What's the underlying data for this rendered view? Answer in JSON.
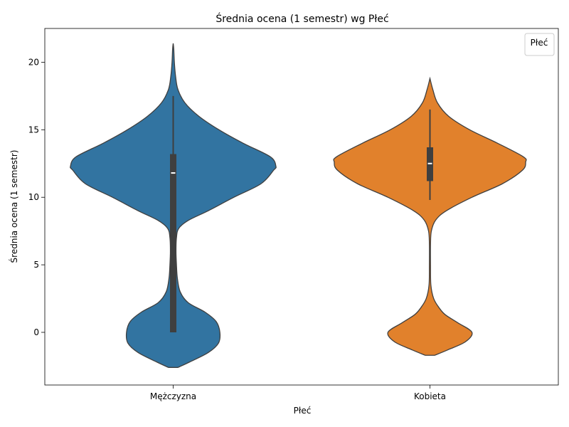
{
  "chart_data": {
    "type": "violin",
    "title": "Średnia ocena (1 semestr) wg Płeć",
    "xlabel": "Płeć",
    "ylabel": "Średnia ocena (1 semestr)",
    "categories": [
      "Mężczyzna",
      "Kobieta"
    ],
    "ylim": [
      -3.9,
      22.5
    ],
    "yticks": [
      0,
      5,
      10,
      15,
      20
    ],
    "ytick_labels": [
      "0",
      "5",
      "10",
      "15",
      "20"
    ],
    "legend": {
      "title": "Płeć",
      "placement": "top-right",
      "entries": []
    },
    "grid": false,
    "series": [
      {
        "category": "Mężczyzna",
        "color": "#3274a1",
        "range": [
          -2.6,
          21.4
        ],
        "quartiles": {
          "q1": 0.0,
          "median": 11.8,
          "q3": 13.2
        },
        "whiskers": [
          0.0,
          17.5
        ],
        "density_profile": [
          [
            -2.6,
            0.1
          ],
          [
            -2.2,
            0.35
          ],
          [
            -1.5,
            0.75
          ],
          [
            -0.8,
            0.97
          ],
          [
            0.0,
            1.0
          ],
          [
            0.8,
            0.92
          ],
          [
            1.5,
            0.68
          ],
          [
            2.2,
            0.32
          ],
          [
            3.0,
            0.15
          ],
          [
            4.0,
            0.09
          ],
          [
            5.0,
            0.07
          ],
          [
            6.0,
            0.06
          ],
          [
            7.0,
            0.07
          ],
          [
            7.7,
            0.12
          ],
          [
            8.3,
            0.33
          ],
          [
            9.0,
            0.75
          ],
          [
            10.0,
            1.3
          ],
          [
            11.0,
            1.88
          ],
          [
            12.0,
            2.15
          ],
          [
            12.3,
            2.2
          ],
          [
            13.0,
            2.08
          ],
          [
            14.0,
            1.5
          ],
          [
            15.0,
            0.98
          ],
          [
            16.0,
            0.55
          ],
          [
            17.0,
            0.25
          ],
          [
            18.0,
            0.1
          ],
          [
            19.0,
            0.05
          ],
          [
            20.0,
            0.025
          ],
          [
            21.0,
            0.012
          ],
          [
            21.4,
            0.0
          ]
        ]
      },
      {
        "category": "Kobieta",
        "color": "#e1812c",
        "range": [
          -1.7,
          18.8
        ],
        "quartiles": {
          "q1": 11.2,
          "median": 12.5,
          "q3": 13.7
        },
        "whiskers": [
          9.8,
          16.5
        ],
        "density_profile": [
          [
            -1.7,
            0.1
          ],
          [
            -1.3,
            0.38
          ],
          [
            -0.7,
            0.76
          ],
          [
            0.0,
            0.9
          ],
          [
            0.7,
            0.6
          ],
          [
            1.3,
            0.33
          ],
          [
            1.8,
            0.2
          ],
          [
            2.5,
            0.08
          ],
          [
            3.5,
            0.02
          ],
          [
            5.0,
            0.012
          ],
          [
            6.5,
            0.012
          ],
          [
            7.5,
            0.03
          ],
          [
            8.3,
            0.12
          ],
          [
            9.0,
            0.35
          ],
          [
            10.0,
            0.9
          ],
          [
            11.0,
            1.55
          ],
          [
            12.0,
            1.98
          ],
          [
            12.6,
            2.05
          ],
          [
            13.0,
            2.0
          ],
          [
            14.0,
            1.45
          ],
          [
            15.0,
            0.85
          ],
          [
            16.0,
            0.4
          ],
          [
            17.0,
            0.16
          ],
          [
            18.0,
            0.06
          ],
          [
            18.8,
            0.0
          ]
        ]
      }
    ]
  }
}
